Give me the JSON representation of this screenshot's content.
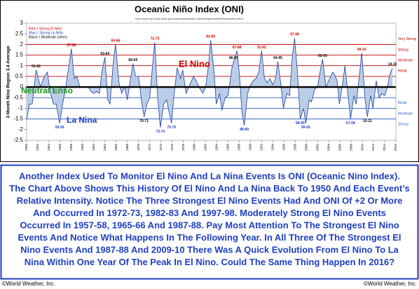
{
  "chart_data": {
    "type": "area",
    "title": "Oceanic Niño Index (ONI)",
    "subtitle": "http://www.cpc.ncep.noaa.gov/products/analysis_monitoring/ensostuff/ensoyears.shtml",
    "y_label": "3-Month Nino Region 3.4 Average",
    "legend_notes": [
      {
        "text": "Red = Strong El Niño",
        "color": "#d00000"
      },
      {
        "text": "Blue = Strong La Niña",
        "color": "#1f3fbf"
      },
      {
        "text": "Black = Moderate (other)",
        "color": "#000000"
      }
    ],
    "annotations": {
      "el_nino": "El Nino",
      "neutral": "Neutral Enso",
      "la_nina": "La Nina"
    },
    "xlim": [
      1950,
      2016
    ],
    "xticks": [
      1950,
      1952,
      1954,
      1956,
      1958,
      1960,
      1962,
      1964,
      1966,
      1968,
      1970,
      1972,
      1974,
      1976,
      1978,
      1980,
      1982,
      1984,
      1986,
      1988,
      1990,
      1992,
      1994,
      1996,
      1998,
      2000,
      2002,
      2004,
      2006,
      2008,
      2010,
      2012,
      2014,
      2016
    ],
    "ylim": [
      -2.5,
      3
    ],
    "yticks": [
      -2.5,
      -2,
      -1.5,
      -1,
      -0.5,
      0,
      0.5,
      1,
      1.5,
      2,
      2.5,
      3
    ],
    "grid": false,
    "reference_lines": [
      {
        "value": 2,
        "color": "#c00000"
      },
      {
        "value": 1.5,
        "color": "#c00000"
      },
      {
        "value": 1,
        "color": "#c00000"
      },
      {
        "value": 0.5,
        "color": "#c00000"
      },
      {
        "value": -0.5,
        "color": "#3060c0"
      },
      {
        "value": -1,
        "color": "#3060c0"
      },
      {
        "value": -1.5,
        "color": "#3060c0"
      }
    ],
    "band_labels": [
      {
        "label": "Very Strong",
        "from": 2,
        "to": 2.5,
        "color": "#c00000"
      },
      {
        "label": "Strong",
        "from": 1.5,
        "to": 2,
        "color": "#c00000"
      },
      {
        "label": "Moderate",
        "from": 1,
        "to": 1.5,
        "color": "#c00000"
      },
      {
        "label": "Weak",
        "from": 0.5,
        "to": 1,
        "color": "#c00000"
      },
      {
        "label": "Weak",
        "from": -0.5,
        "to": -1,
        "color": "#3060c0"
      },
      {
        "label": "Moderate",
        "from": -1,
        "to": -1.5,
        "color": "#3060c0"
      },
      {
        "label": "Strong",
        "from": -1.5,
        "to": -2,
        "color": "#3060c0"
      }
    ],
    "series": [
      {
        "name": "ONI",
        "color": "#1f3f9f",
        "fill": "#b9cde6",
        "x": [
          1950.0,
          1950.5,
          1951.0,
          1951.7,
          1952.0,
          1952.5,
          1953.0,
          1953.7,
          1954.2,
          1954.8,
          1955.3,
          1955.9,
          1956.5,
          1957.0,
          1957.5,
          1958.0,
          1958.5,
          1959.0,
          1959.5,
          1960.0,
          1960.5,
          1961.0,
          1961.5,
          1962.0,
          1962.5,
          1963.0,
          1963.5,
          1964.0,
          1964.5,
          1964.9,
          1965.5,
          1965.9,
          1966.5,
          1967.0,
          1967.5,
          1968.0,
          1968.7,
          1969.0,
          1969.5,
          1970.0,
          1970.5,
          1971.0,
          1971.5,
          1972.0,
          1972.5,
          1972.9,
          1973.4,
          1973.9,
          1974.5,
          1975.0,
          1975.9,
          1976.3,
          1976.9,
          1977.5,
          1977.9,
          1978.5,
          1979.0,
          1979.8,
          1980.3,
          1980.8,
          1981.5,
          1982.0,
          1982.5,
          1982.9,
          1983.5,
          1983.9,
          1984.5,
          1984.9,
          1985.5,
          1986.0,
          1986.7,
          1987.0,
          1987.6,
          1988.0,
          1988.5,
          1988.9,
          1989.5,
          1990.0,
          1990.5,
          1991.0,
          1991.5,
          1992.0,
          1992.5,
          1993.0,
          1993.5,
          1994.0,
          1994.5,
          1994.9,
          1995.5,
          1995.9,
          1996.5,
          1997.0,
          1997.5,
          1997.9,
          1998.4,
          1998.9,
          1999.5,
          1999.9,
          2000.5,
          2000.9,
          2001.5,
          2002.0,
          2002.5,
          2002.9,
          2003.5,
          2004.0,
          2004.7,
          2005.0,
          2005.5,
          2005.9,
          2006.5,
          2006.9,
          2007.5,
          2007.9,
          2008.5,
          2008.9,
          2009.5,
          2009.9,
          2010.5,
          2010.9,
          2011.5,
          2011.9,
          2012.5,
          2013.0,
          2013.5,
          2014.0,
          2014.5,
          2014.9,
          2015.4
        ],
        "values": [
          -1.5,
          -0.8,
          -0.8,
          0.8,
          0.5,
          0.0,
          0.4,
          0.7,
          -0.2,
          -0.8,
          -0.8,
          -1.7,
          -0.7,
          0.0,
          0.9,
          1.8,
          0.4,
          0.5,
          0.0,
          0.0,
          0.0,
          0.0,
          -0.2,
          -0.3,
          -0.2,
          -0.3,
          0.8,
          1.4,
          -0.6,
          -0.8,
          1.2,
          2.0,
          0.2,
          -0.3,
          0.0,
          -0.6,
          0.6,
          1.1,
          0.5,
          0.5,
          -0.6,
          -1.4,
          -0.8,
          -0.5,
          1.0,
          2.1,
          -0.4,
          -1.9,
          -0.8,
          -0.6,
          -1.7,
          -0.5,
          0.9,
          0.4,
          0.8,
          -0.3,
          0.0,
          0.5,
          0.3,
          0.0,
          -0.3,
          0.0,
          1.0,
          2.2,
          0.7,
          -0.8,
          -0.3,
          -1.1,
          -0.5,
          -0.4,
          0.9,
          1.2,
          1.7,
          0.7,
          -1.2,
          -1.8,
          -0.3,
          0.1,
          0.3,
          0.4,
          0.7,
          1.7,
          0.4,
          0.2,
          0.4,
          0.1,
          0.4,
          1.2,
          0.0,
          -1.0,
          -0.3,
          -0.4,
          1.4,
          2.3,
          0.7,
          -1.5,
          -1.0,
          -1.7,
          -0.6,
          -0.7,
          -0.1,
          0.0,
          0.8,
          1.3,
          0.0,
          0.3,
          0.7,
          0.6,
          0.3,
          -0.8,
          0.2,
          1.0,
          -0.5,
          -1.5,
          -0.4,
          -0.8,
          0.6,
          1.6,
          -0.6,
          -1.4,
          -0.4,
          -1.0,
          0.3,
          -0.5,
          -0.3,
          -0.4,
          0.0,
          0.6,
          0.9
        ]
      }
    ],
    "event_labels": [
      {
        "text": "51-52",
        "x": 1951.7,
        "y": 0.8,
        "color": "#000000"
      },
      {
        "text": "57-58",
        "x": 1958.0,
        "y": 1.8,
        "color": "#d00000"
      },
      {
        "text": "63-64",
        "x": 1964.0,
        "y": 1.4,
        "color": "#000000"
      },
      {
        "text": "65-66",
        "x": 1965.9,
        "y": 2.0,
        "color": "#d00000"
      },
      {
        "text": "68-69",
        "x": 1969.0,
        "y": 1.1,
        "color": "#000000"
      },
      {
        "text": "72-73",
        "x": 1972.9,
        "y": 2.1,
        "color": "#d00000"
      },
      {
        "text": "82-83",
        "x": 1982.9,
        "y": 2.2,
        "color": "#d00000"
      },
      {
        "text": "86-87",
        "x": 1987.0,
        "y": 1.2,
        "color": "#000000"
      },
      {
        "text": "87-88",
        "x": 1987.6,
        "y": 1.7,
        "color": "#d00000"
      },
      {
        "text": "91-92",
        "x": 1992.0,
        "y": 1.7,
        "color": "#d00000"
      },
      {
        "text": "94-95",
        "x": 1994.9,
        "y": 1.2,
        "color": "#000000"
      },
      {
        "text": "97-98",
        "x": 1997.9,
        "y": 2.3,
        "color": "#d00000"
      },
      {
        "text": "02-03",
        "x": 2002.9,
        "y": 1.3,
        "color": "#000000"
      },
      {
        "text": "09-10",
        "x": 2009.9,
        "y": 1.6,
        "color": "#d00000"
      },
      {
        "text": "14-15",
        "x": 2015.4,
        "y": 0.9,
        "color": "#000000"
      },
      {
        "text": "55-56",
        "x": 1955.9,
        "y": -1.7,
        "color": "#1f3fbf"
      },
      {
        "text": "70-71",
        "x": 1971.0,
        "y": -1.4,
        "color": "#000000"
      },
      {
        "text": "73-74",
        "x": 1973.9,
        "y": -1.9,
        "color": "#1f3fbf"
      },
      {
        "text": "75-76",
        "x": 1975.9,
        "y": -1.7,
        "color": "#1f3fbf"
      },
      {
        "text": "88-89",
        "x": 1988.9,
        "y": -1.8,
        "color": "#1f3fbf"
      },
      {
        "text": "98-99",
        "x": 1998.9,
        "y": -1.5,
        "color": "#1f3fbf"
      },
      {
        "text": "99-00",
        "x": 1999.9,
        "y": -1.7,
        "color": "#1f3fbf"
      },
      {
        "text": "07-08",
        "x": 2007.9,
        "y": -1.5,
        "color": "#1f3fbf"
      },
      {
        "text": "10-11",
        "x": 2010.9,
        "y": -1.4,
        "color": "#000000"
      }
    ]
  },
  "body": {
    "lines": [
      "Another Index Used To Monitor El Nino And La Nina Events Is ONI (Oceanic Nino Index).",
      "The Chart Above Shows This History Of El Nino And La Nina Back To 1950 And Each Event’s",
      "Relative Intensity. Notice The Three Strongest El Nino Events Had And ONI Of +2 Or More",
      "And Occurred In 1972-73, 1982-83 And 1997-98.  Moderately Strong El Nino Events",
      "Occurred In 1957-58, 1965-66 And 1987-88.  Pay Most Attention To The Strongest El Nino",
      "Events And Notice What Happens In The Following Year. In All Three Of The Strongest El",
      "Nino Events And 1987-88 And 2009-10 There Was A Quick Evolution From El Nino To La",
      "Nina Within One Year Of The Peak In El Nino.  Could The Same Thing Happen In 2016?"
    ]
  },
  "footer": {
    "left": "©World Weather, Inc.",
    "right": "©World Weather, Inc."
  }
}
